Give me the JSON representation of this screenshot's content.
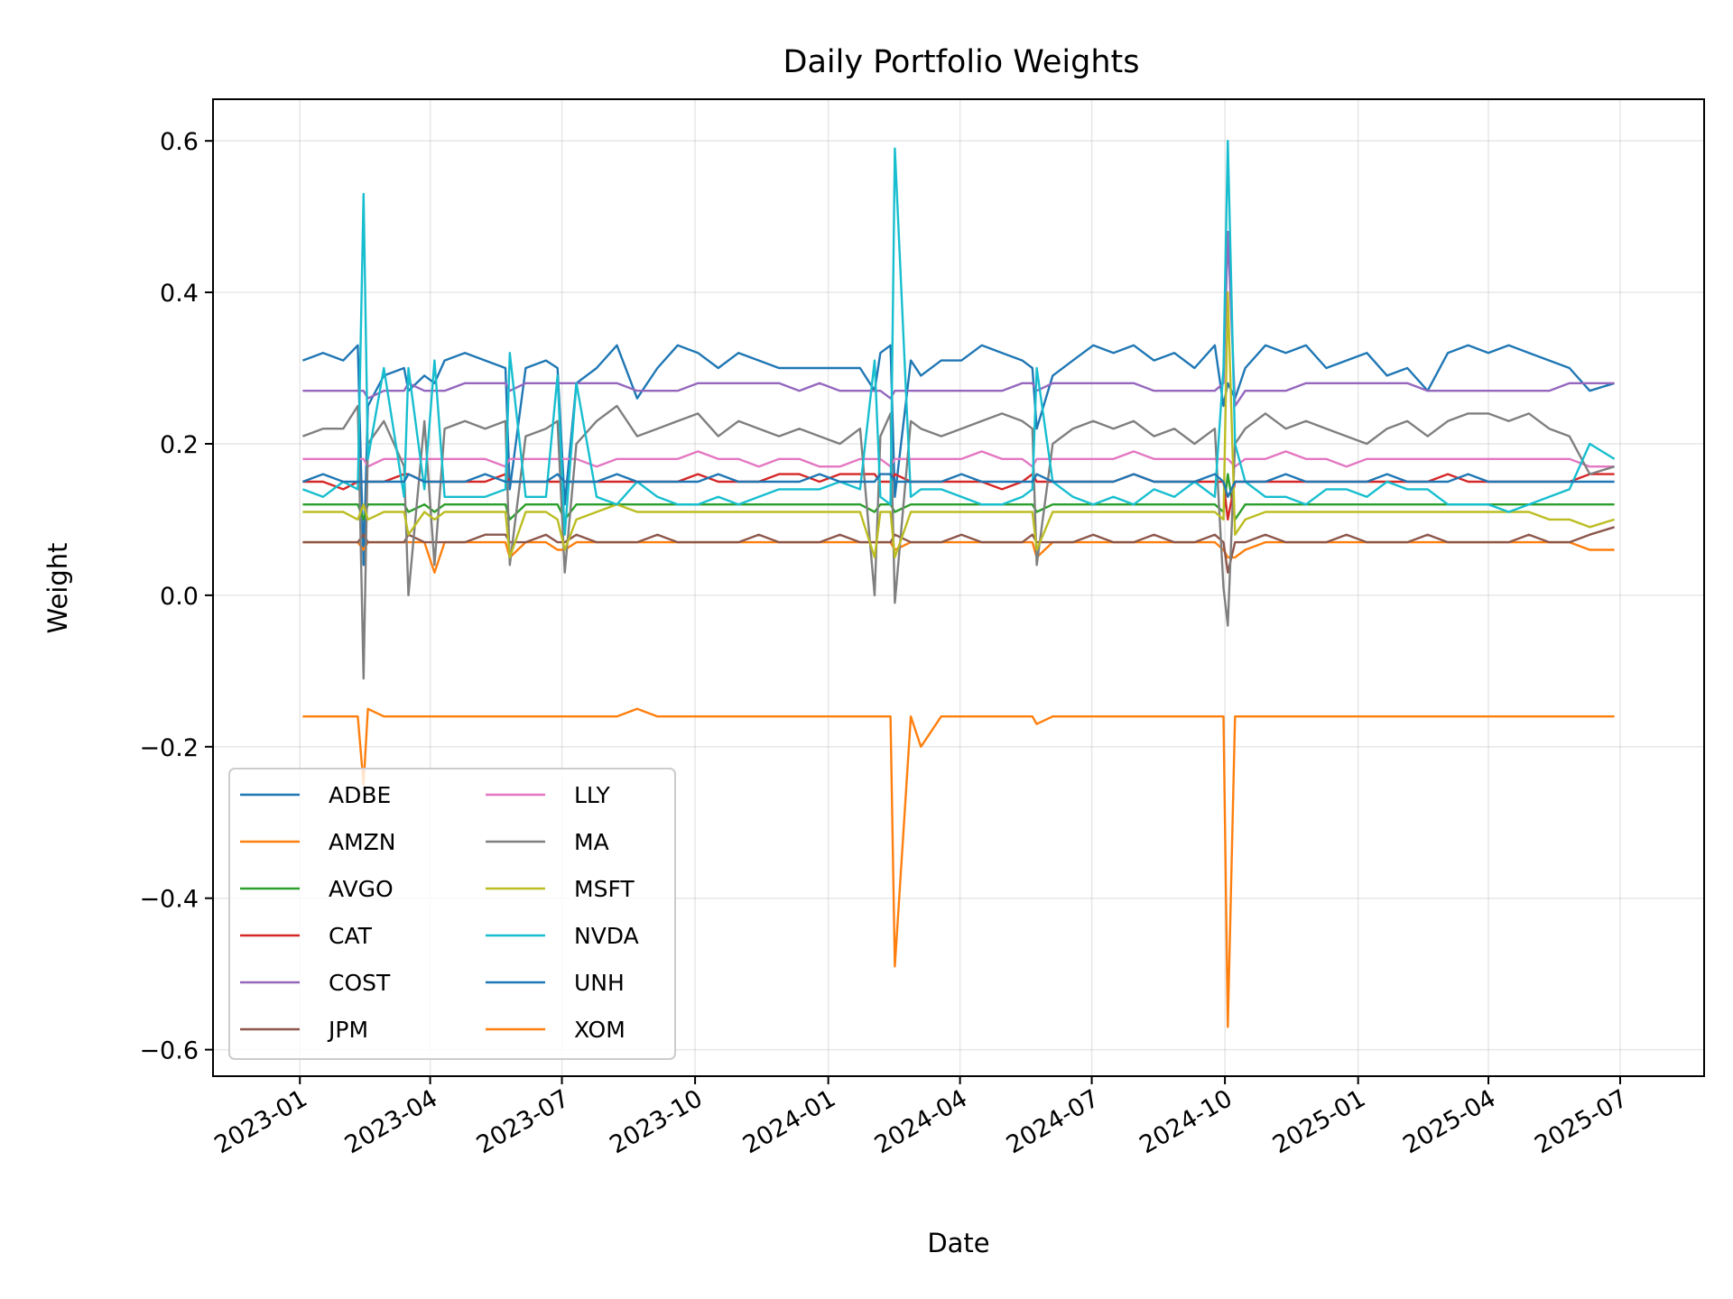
{
  "chart_data": {
    "type": "line",
    "title": "Daily Portfolio Weights",
    "xlabel": "Date",
    "ylabel": "Weight",
    "xlim": [
      "2022-11-02",
      "2025-08-28"
    ],
    "ylim": [
      -0.635,
      0.655
    ],
    "x_ticks": [
      "2023-01",
      "2023-04",
      "2023-07",
      "2023-10",
      "2024-01",
      "2024-04",
      "2024-07",
      "2024-10",
      "2025-01",
      "2025-04",
      "2025-07"
    ],
    "y_ticks": [
      -0.6,
      -0.4,
      -0.2,
      0.0,
      0.2,
      0.4,
      0.6
    ],
    "y_tick_labels": [
      "−0.6",
      "−0.4",
      "−0.2",
      "0.0",
      "0.2",
      "0.4",
      "0.6"
    ],
    "grid": true,
    "legend": {
      "position": "lower-left",
      "columns": 2
    },
    "x": [
      "2023-01-03",
      "2023-01-17",
      "2023-01-31",
      "2023-02-10",
      "2023-02-14",
      "2023-02-17",
      "2023-02-28",
      "2023-03-14",
      "2023-03-17",
      "2023-03-28",
      "2023-04-04",
      "2023-04-11",
      "2023-04-25",
      "2023-05-09",
      "2023-05-23",
      "2023-05-26",
      "2023-06-06",
      "2023-06-20",
      "2023-06-28",
      "2023-07-03",
      "2023-07-11",
      "2023-07-25",
      "2023-08-08",
      "2023-08-22",
      "2023-09-05",
      "2023-09-19",
      "2023-10-03",
      "2023-10-17",
      "2023-10-31",
      "2023-11-14",
      "2023-11-28",
      "2023-12-12",
      "2023-12-26",
      "2024-01-09",
      "2024-01-23",
      "2024-02-02",
      "2024-02-06",
      "2024-02-13",
      "2024-02-16",
      "2024-02-27",
      "2024-03-05",
      "2024-03-19",
      "2024-04-02",
      "2024-04-16",
      "2024-04-30",
      "2024-05-14",
      "2024-05-21",
      "2024-05-24",
      "2024-06-04",
      "2024-06-18",
      "2024-07-02",
      "2024-07-16",
      "2024-07-30",
      "2024-08-13",
      "2024-08-27",
      "2024-09-10",
      "2024-09-24",
      "2024-09-30",
      "2024-10-03",
      "2024-10-08",
      "2024-10-15",
      "2024-10-29",
      "2024-11-12",
      "2024-11-26",
      "2024-12-10",
      "2024-12-24",
      "2025-01-07",
      "2025-01-21",
      "2025-02-04",
      "2025-02-18",
      "2025-03-04",
      "2025-03-18",
      "2025-04-01",
      "2025-04-15",
      "2025-04-29",
      "2025-05-13",
      "2025-05-27",
      "2025-06-10",
      "2025-06-27"
    ],
    "series": [
      {
        "name": "ADBE",
        "color": "#1f77b4",
        "values": [
          0.31,
          0.32,
          0.31,
          0.33,
          0.04,
          0.25,
          0.29,
          0.3,
          0.27,
          0.29,
          0.28,
          0.31,
          0.32,
          0.31,
          0.3,
          0.14,
          0.3,
          0.31,
          0.3,
          0.12,
          0.28,
          0.3,
          0.33,
          0.26,
          0.3,
          0.33,
          0.32,
          0.3,
          0.32,
          0.31,
          0.3,
          0.3,
          0.3,
          0.3,
          0.3,
          0.27,
          0.32,
          0.33,
          0.13,
          0.31,
          0.29,
          0.31,
          0.31,
          0.33,
          0.32,
          0.31,
          0.3,
          0.22,
          0.29,
          0.31,
          0.33,
          0.32,
          0.33,
          0.31,
          0.32,
          0.3,
          0.33,
          0.25,
          0.28,
          0.26,
          0.3,
          0.33,
          0.32,
          0.33,
          0.3,
          0.31,
          0.32,
          0.29,
          0.3,
          0.27,
          0.32,
          0.33,
          0.32,
          0.33,
          0.32,
          0.31,
          0.3,
          0.27,
          0.28
        ]
      },
      {
        "name": "AMZN",
        "color": "#ff7f0e",
        "values": [
          0.07,
          0.07,
          0.07,
          0.07,
          0.06,
          0.07,
          0.07,
          0.07,
          0.07,
          0.07,
          0.03,
          0.07,
          0.07,
          0.07,
          0.07,
          0.05,
          0.07,
          0.07,
          0.06,
          0.06,
          0.07,
          0.07,
          0.07,
          0.07,
          0.07,
          0.07,
          0.07,
          0.07,
          0.07,
          0.07,
          0.07,
          0.07,
          0.07,
          0.07,
          0.07,
          0.07,
          0.07,
          0.07,
          0.06,
          0.07,
          0.07,
          0.07,
          0.07,
          0.07,
          0.07,
          0.07,
          0.07,
          0.05,
          0.07,
          0.07,
          0.07,
          0.07,
          0.07,
          0.07,
          0.07,
          0.07,
          0.07,
          0.06,
          0.05,
          0.05,
          0.06,
          0.07,
          0.07,
          0.07,
          0.07,
          0.07,
          0.07,
          0.07,
          0.07,
          0.07,
          0.07,
          0.07,
          0.07,
          0.07,
          0.07,
          0.07,
          0.07,
          0.06,
          0.06
        ]
      },
      {
        "name": "AVGO",
        "color": "#2ca02c",
        "values": [
          0.12,
          0.12,
          0.12,
          0.12,
          0.1,
          0.12,
          0.12,
          0.12,
          0.11,
          0.12,
          0.11,
          0.12,
          0.12,
          0.12,
          0.12,
          0.1,
          0.12,
          0.12,
          0.12,
          0.1,
          0.12,
          0.12,
          0.12,
          0.12,
          0.12,
          0.12,
          0.12,
          0.12,
          0.12,
          0.12,
          0.12,
          0.12,
          0.12,
          0.12,
          0.12,
          0.11,
          0.12,
          0.12,
          0.11,
          0.12,
          0.12,
          0.12,
          0.12,
          0.12,
          0.12,
          0.12,
          0.12,
          0.11,
          0.12,
          0.12,
          0.12,
          0.12,
          0.12,
          0.12,
          0.12,
          0.12,
          0.12,
          0.11,
          0.16,
          0.1,
          0.12,
          0.12,
          0.12,
          0.12,
          0.12,
          0.12,
          0.12,
          0.12,
          0.12,
          0.12,
          0.12,
          0.12,
          0.12,
          0.12,
          0.12,
          0.12,
          0.12,
          0.12,
          0.12
        ]
      },
      {
        "name": "CAT",
        "color": "#d62728",
        "values": [
          0.15,
          0.15,
          0.14,
          0.15,
          0.15,
          0.15,
          0.15,
          0.16,
          0.16,
          0.15,
          0.15,
          0.15,
          0.15,
          0.15,
          0.16,
          0.15,
          0.15,
          0.15,
          0.15,
          0.15,
          0.15,
          0.15,
          0.15,
          0.15,
          0.15,
          0.15,
          0.16,
          0.15,
          0.15,
          0.15,
          0.16,
          0.16,
          0.15,
          0.16,
          0.16,
          0.16,
          0.15,
          0.15,
          0.16,
          0.15,
          0.15,
          0.15,
          0.15,
          0.15,
          0.14,
          0.15,
          0.16,
          0.15,
          0.15,
          0.15,
          0.15,
          0.15,
          0.16,
          0.15,
          0.15,
          0.15,
          0.15,
          0.15,
          0.1,
          0.15,
          0.15,
          0.15,
          0.15,
          0.15,
          0.15,
          0.15,
          0.15,
          0.15,
          0.15,
          0.15,
          0.16,
          0.15,
          0.15,
          0.15,
          0.15,
          0.15,
          0.15,
          0.16,
          0.16
        ]
      },
      {
        "name": "COST",
        "color": "#9467bd",
        "values": [
          0.27,
          0.27,
          0.27,
          0.27,
          0.27,
          0.26,
          0.27,
          0.27,
          0.28,
          0.27,
          0.27,
          0.27,
          0.28,
          0.28,
          0.28,
          0.27,
          0.28,
          0.28,
          0.28,
          0.28,
          0.28,
          0.28,
          0.28,
          0.27,
          0.27,
          0.27,
          0.28,
          0.28,
          0.28,
          0.28,
          0.28,
          0.27,
          0.28,
          0.27,
          0.27,
          0.27,
          0.27,
          0.26,
          0.27,
          0.27,
          0.27,
          0.27,
          0.27,
          0.27,
          0.27,
          0.28,
          0.28,
          0.27,
          0.28,
          0.28,
          0.28,
          0.28,
          0.28,
          0.27,
          0.27,
          0.27,
          0.27,
          0.28,
          0.48,
          0.25,
          0.27,
          0.27,
          0.27,
          0.28,
          0.28,
          0.28,
          0.28,
          0.28,
          0.28,
          0.27,
          0.27,
          0.27,
          0.27,
          0.27,
          0.27,
          0.27,
          0.28,
          0.28,
          0.28
        ]
      },
      {
        "name": "JPM",
        "color": "#8c564b",
        "values": [
          0.07,
          0.07,
          0.07,
          0.07,
          0.08,
          0.07,
          0.07,
          0.07,
          0.08,
          0.07,
          0.07,
          0.07,
          0.07,
          0.08,
          0.08,
          0.07,
          0.07,
          0.08,
          0.07,
          0.07,
          0.08,
          0.07,
          0.07,
          0.07,
          0.08,
          0.07,
          0.07,
          0.07,
          0.07,
          0.08,
          0.07,
          0.07,
          0.07,
          0.08,
          0.07,
          0.07,
          0.07,
          0.07,
          0.08,
          0.07,
          0.07,
          0.07,
          0.08,
          0.07,
          0.07,
          0.07,
          0.08,
          0.07,
          0.07,
          0.07,
          0.08,
          0.07,
          0.07,
          0.08,
          0.07,
          0.07,
          0.08,
          0.07,
          0.03,
          0.07,
          0.07,
          0.08,
          0.07,
          0.07,
          0.07,
          0.08,
          0.07,
          0.07,
          0.07,
          0.08,
          0.07,
          0.07,
          0.07,
          0.07,
          0.08,
          0.07,
          0.07,
          0.08,
          0.09
        ]
      },
      {
        "name": "LLY",
        "color": "#e377c2",
        "values": [
          0.18,
          0.18,
          0.18,
          0.18,
          0.18,
          0.17,
          0.18,
          0.18,
          0.18,
          0.18,
          0.18,
          0.18,
          0.18,
          0.18,
          0.17,
          0.18,
          0.18,
          0.18,
          0.18,
          0.18,
          0.18,
          0.17,
          0.18,
          0.18,
          0.18,
          0.18,
          0.19,
          0.18,
          0.18,
          0.17,
          0.18,
          0.18,
          0.17,
          0.17,
          0.18,
          0.18,
          0.18,
          0.17,
          0.18,
          0.18,
          0.18,
          0.18,
          0.18,
          0.19,
          0.18,
          0.18,
          0.17,
          0.18,
          0.18,
          0.18,
          0.18,
          0.18,
          0.19,
          0.18,
          0.18,
          0.18,
          0.18,
          0.18,
          0.18,
          0.17,
          0.18,
          0.18,
          0.19,
          0.18,
          0.18,
          0.17,
          0.18,
          0.18,
          0.18,
          0.18,
          0.18,
          0.18,
          0.18,
          0.18,
          0.18,
          0.18,
          0.18,
          0.17,
          0.17
        ]
      },
      {
        "name": "MA",
        "color": "#7f7f7f",
        "values": [
          0.21,
          0.22,
          0.22,
          0.25,
          -0.11,
          0.2,
          0.23,
          0.17,
          0.0,
          0.23,
          0.04,
          0.22,
          0.23,
          0.22,
          0.23,
          0.04,
          0.21,
          0.22,
          0.23,
          0.03,
          0.2,
          0.23,
          0.25,
          0.21,
          0.22,
          0.23,
          0.24,
          0.21,
          0.23,
          0.22,
          0.21,
          0.22,
          0.21,
          0.2,
          0.22,
          0.0,
          0.21,
          0.24,
          -0.01,
          0.23,
          0.22,
          0.21,
          0.22,
          0.23,
          0.24,
          0.23,
          0.22,
          0.04,
          0.2,
          0.22,
          0.23,
          0.22,
          0.23,
          0.21,
          0.22,
          0.2,
          0.22,
          0.01,
          -0.04,
          0.2,
          0.22,
          0.24,
          0.22,
          0.23,
          0.22,
          0.21,
          0.2,
          0.22,
          0.23,
          0.21,
          0.23,
          0.24,
          0.24,
          0.23,
          0.24,
          0.22,
          0.21,
          0.16,
          0.17
        ]
      },
      {
        "name": "MSFT",
        "color": "#bcbd22",
        "values": [
          0.11,
          0.11,
          0.11,
          0.1,
          0.12,
          0.1,
          0.11,
          0.11,
          0.08,
          0.11,
          0.1,
          0.11,
          0.11,
          0.11,
          0.11,
          0.05,
          0.11,
          0.11,
          0.1,
          0.06,
          0.1,
          0.11,
          0.12,
          0.11,
          0.11,
          0.11,
          0.11,
          0.11,
          0.11,
          0.11,
          0.11,
          0.11,
          0.11,
          0.11,
          0.11,
          0.05,
          0.11,
          0.11,
          0.05,
          0.11,
          0.11,
          0.11,
          0.11,
          0.11,
          0.11,
          0.11,
          0.11,
          0.06,
          0.11,
          0.11,
          0.11,
          0.11,
          0.11,
          0.11,
          0.11,
          0.11,
          0.11,
          0.1,
          0.4,
          0.08,
          0.1,
          0.11,
          0.11,
          0.11,
          0.11,
          0.11,
          0.11,
          0.11,
          0.11,
          0.11,
          0.11,
          0.11,
          0.11,
          0.11,
          0.11,
          0.1,
          0.1,
          0.09,
          0.1
        ]
      },
      {
        "name": "NVDA",
        "color": "#17becf",
        "values": [
          0.14,
          0.13,
          0.15,
          0.14,
          0.53,
          0.18,
          0.3,
          0.13,
          0.3,
          0.14,
          0.31,
          0.13,
          0.13,
          0.13,
          0.14,
          0.32,
          0.13,
          0.13,
          0.29,
          0.08,
          0.28,
          0.13,
          0.12,
          0.15,
          0.13,
          0.12,
          0.12,
          0.13,
          0.12,
          0.13,
          0.14,
          0.14,
          0.14,
          0.15,
          0.14,
          0.31,
          0.13,
          0.12,
          0.59,
          0.13,
          0.14,
          0.14,
          0.13,
          0.12,
          0.12,
          0.13,
          0.14,
          0.3,
          0.15,
          0.13,
          0.12,
          0.13,
          0.12,
          0.14,
          0.13,
          0.15,
          0.13,
          0.3,
          0.6,
          0.2,
          0.15,
          0.13,
          0.13,
          0.12,
          0.14,
          0.14,
          0.13,
          0.15,
          0.14,
          0.14,
          0.12,
          0.12,
          0.12,
          0.11,
          0.12,
          0.13,
          0.14,
          0.2,
          0.18
        ]
      },
      {
        "name": "UNH",
        "color": "#1f77b4",
        "values": [
          0.15,
          0.16,
          0.15,
          0.15,
          0.15,
          0.15,
          0.15,
          0.15,
          0.16,
          0.15,
          0.15,
          0.15,
          0.15,
          0.16,
          0.15,
          0.15,
          0.15,
          0.15,
          0.16,
          0.15,
          0.15,
          0.15,
          0.16,
          0.15,
          0.15,
          0.15,
          0.15,
          0.16,
          0.15,
          0.15,
          0.15,
          0.15,
          0.16,
          0.15,
          0.15,
          0.15,
          0.16,
          0.16,
          0.15,
          0.15,
          0.15,
          0.15,
          0.16,
          0.15,
          0.15,
          0.15,
          0.15,
          0.16,
          0.15,
          0.15,
          0.15,
          0.15,
          0.16,
          0.15,
          0.15,
          0.15,
          0.16,
          0.15,
          0.13,
          0.15,
          0.15,
          0.15,
          0.16,
          0.15,
          0.15,
          0.15,
          0.15,
          0.16,
          0.15,
          0.15,
          0.15,
          0.16,
          0.15,
          0.15,
          0.15,
          0.15,
          0.15,
          0.15,
          0.15
        ]
      },
      {
        "name": "XOM",
        "color": "#ff7f0e",
        "values": [
          -0.16,
          -0.16,
          -0.16,
          -0.16,
          -0.25,
          -0.15,
          -0.16,
          -0.16,
          -0.16,
          -0.16,
          -0.16,
          -0.16,
          -0.16,
          -0.16,
          -0.16,
          -0.16,
          -0.16,
          -0.16,
          -0.16,
          -0.16,
          -0.16,
          -0.16,
          -0.16,
          -0.15,
          -0.16,
          -0.16,
          -0.16,
          -0.16,
          -0.16,
          -0.16,
          -0.16,
          -0.16,
          -0.16,
          -0.16,
          -0.16,
          -0.16,
          -0.16,
          -0.16,
          -0.49,
          -0.16,
          -0.2,
          -0.16,
          -0.16,
          -0.16,
          -0.16,
          -0.16,
          -0.16,
          -0.17,
          -0.16,
          -0.16,
          -0.16,
          -0.16,
          -0.16,
          -0.16,
          -0.16,
          -0.16,
          -0.16,
          -0.16,
          -0.57,
          -0.16,
          -0.16,
          -0.16,
          -0.16,
          -0.16,
          -0.16,
          -0.16,
          -0.16,
          -0.16,
          -0.16,
          -0.16,
          -0.16,
          -0.16,
          -0.16,
          -0.16,
          -0.16,
          -0.16,
          -0.16,
          -0.16,
          -0.16
        ]
      }
    ]
  }
}
